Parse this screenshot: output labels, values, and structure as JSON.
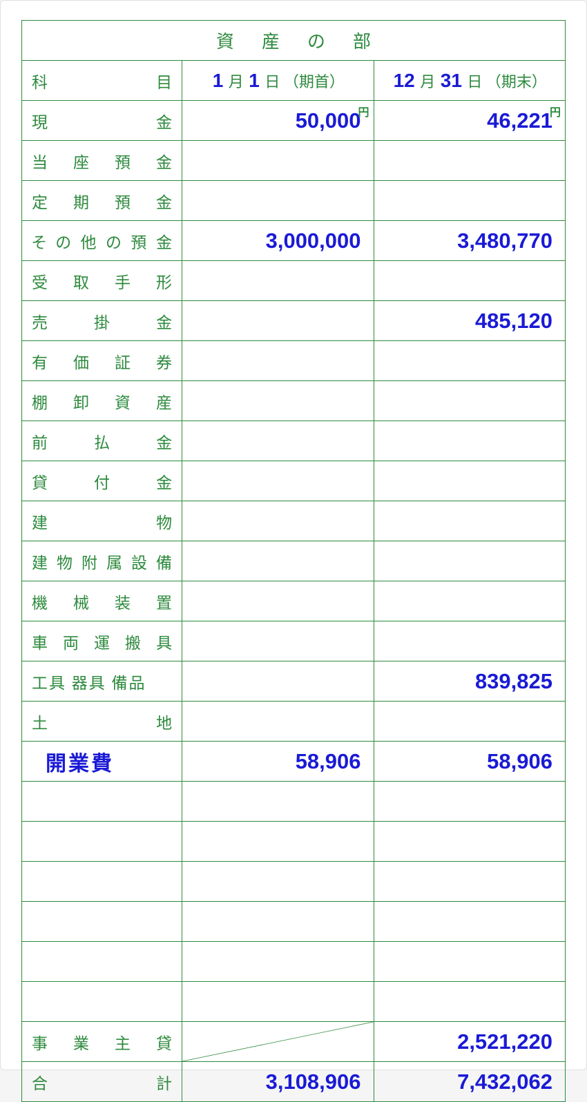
{
  "colors": {
    "border": "#2d8a3d",
    "label_text": "#2d8a3d",
    "value_text": "#1a1ad6",
    "page_bg": "#ffffff"
  },
  "section_title": "資産の部",
  "header": {
    "account_col": "科目",
    "start": {
      "month": "1",
      "day": "1",
      "label_month": "月",
      "label_day": "日",
      "label_period": "（期首）"
    },
    "end": {
      "month": "12",
      "day": "31",
      "label_month": "月",
      "label_day": "日",
      "label_period": "（期末）"
    }
  },
  "yen_symbol": "円",
  "rows": [
    {
      "label": "現金",
      "start": "50,000",
      "end": "46,221",
      "show_yen": true
    },
    {
      "label": "当座預金",
      "start": "",
      "end": ""
    },
    {
      "label": "定期預金",
      "start": "",
      "end": ""
    },
    {
      "label": "その他の預金",
      "start": "3,000,000",
      "end": "3,480,770"
    },
    {
      "label": "受取手形",
      "start": "",
      "end": ""
    },
    {
      "label": "売掛金",
      "start": "",
      "end": "485,120"
    },
    {
      "label": "有価証券",
      "start": "",
      "end": ""
    },
    {
      "label": "棚卸資産",
      "start": "",
      "end": ""
    },
    {
      "label": "前払金",
      "start": "",
      "end": ""
    },
    {
      "label": "貸付金",
      "start": "",
      "end": ""
    },
    {
      "label": "建物",
      "start": "",
      "end": ""
    },
    {
      "label": "建物附属設備",
      "start": "",
      "end": ""
    },
    {
      "label": "機械装置",
      "start": "",
      "end": ""
    },
    {
      "label": "車両運搬具",
      "start": "",
      "end": ""
    },
    {
      "label": "工具 器具 備品",
      "start": "",
      "end": "839,825",
      "no_justify": true
    },
    {
      "label": "土地",
      "start": "",
      "end": ""
    },
    {
      "label": "開業費",
      "start": "58,906",
      "end": "58,906",
      "custom": true
    },
    {
      "label": "",
      "start": "",
      "end": ""
    },
    {
      "label": "",
      "start": "",
      "end": ""
    },
    {
      "label": "",
      "start": "",
      "end": ""
    },
    {
      "label": "",
      "start": "",
      "end": ""
    },
    {
      "label": "",
      "start": "",
      "end": ""
    },
    {
      "label": "",
      "start": "",
      "end": ""
    }
  ],
  "owner_row": {
    "label": "事業主貸",
    "end": "2,521,220"
  },
  "total_row": {
    "label": "合計",
    "start": "3,108,906",
    "end": "7,432,062"
  }
}
